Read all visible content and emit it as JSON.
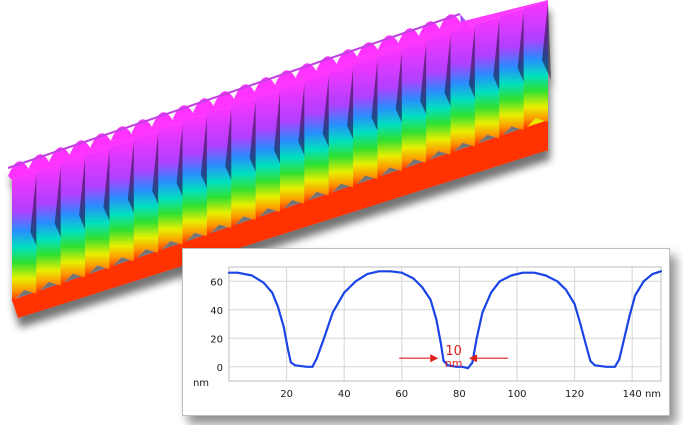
{
  "surface_image": {
    "colors": {
      "top": "#ff33ff",
      "top_edge": "#c040e0",
      "gradient": [
        "#a040ff",
        "#2090ff",
        "#00e0c0",
        "#30e030",
        "#e0f000",
        "#ff9000",
        "#ff2000"
      ]
    }
  },
  "chart_data": {
    "type": "line",
    "title": "",
    "xlabel": "nm",
    "ylabel": "nm",
    "xlim": [
      0,
      150
    ],
    "ylim": [
      -10,
      70
    ],
    "x_ticks": [
      20,
      40,
      60,
      80,
      100,
      120,
      140
    ],
    "y_ticks": [
      0,
      20,
      40,
      60
    ],
    "grid": true,
    "series": [
      {
        "color": "#1a44e6",
        "x": [
          0,
          3,
          8,
          12,
          15,
          17,
          19,
          20.5,
          21.5,
          23,
          27,
          29,
          30.5,
          33,
          36,
          40,
          44,
          48,
          52,
          56,
          60,
          64,
          67,
          70,
          72,
          73.5,
          74.5,
          76,
          79,
          81,
          83,
          84.5,
          86,
          88,
          91,
          94,
          98,
          102,
          106,
          110,
          114,
          117,
          120,
          122,
          124,
          125.5,
          127,
          131,
          134,
          135.5,
          137,
          139,
          141,
          144,
          147,
          150
        ],
        "y": [
          66,
          66,
          64,
          59,
          52,
          42,
          28,
          12,
          3,
          1,
          0,
          0,
          6,
          20,
          38,
          52,
          60,
          65,
          67,
          67,
          66,
          62,
          56,
          47,
          33,
          17,
          4,
          1,
          0,
          0,
          -1,
          3,
          20,
          38,
          52,
          60,
          64,
          66,
          66,
          64,
          60,
          54,
          44,
          30,
          15,
          4,
          1,
          0,
          0,
          5,
          18,
          35,
          50,
          60,
          65,
          67
        ]
      }
    ],
    "annotation": {
      "value": "10",
      "unit": "nm",
      "color": "#e0201b",
      "left_x": 73,
      "right_x": 83,
      "y": 6
    }
  }
}
